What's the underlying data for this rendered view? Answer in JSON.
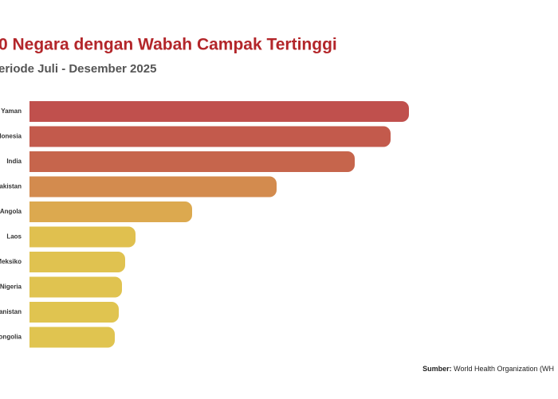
{
  "chart_data": {
    "type": "hbar",
    "title": "0 Negara dengan Wabah Campak Tertinggi",
    "subtitle": "eriode Juli - Desember 2025",
    "categories": [
      "Yaman",
      "donesia",
      "India",
      "akistan",
      "Angola",
      "Laos",
      "Meksiko",
      "Nigeria",
      "anistan",
      "ongolia"
    ],
    "values": [
      476,
      453,
      408,
      310,
      204,
      133,
      120,
      116,
      112,
      107
    ],
    "colors": [
      "#c0504d",
      "#c35a4c",
      "#c6654c",
      "#d38b4e",
      "#dca94f",
      "#e0c04f",
      "#e0c250",
      "#e0c350",
      "#e0c450",
      "#e0c450"
    ],
    "source_label": "Sumber:",
    "source_text": "World Health Organization (WH"
  }
}
